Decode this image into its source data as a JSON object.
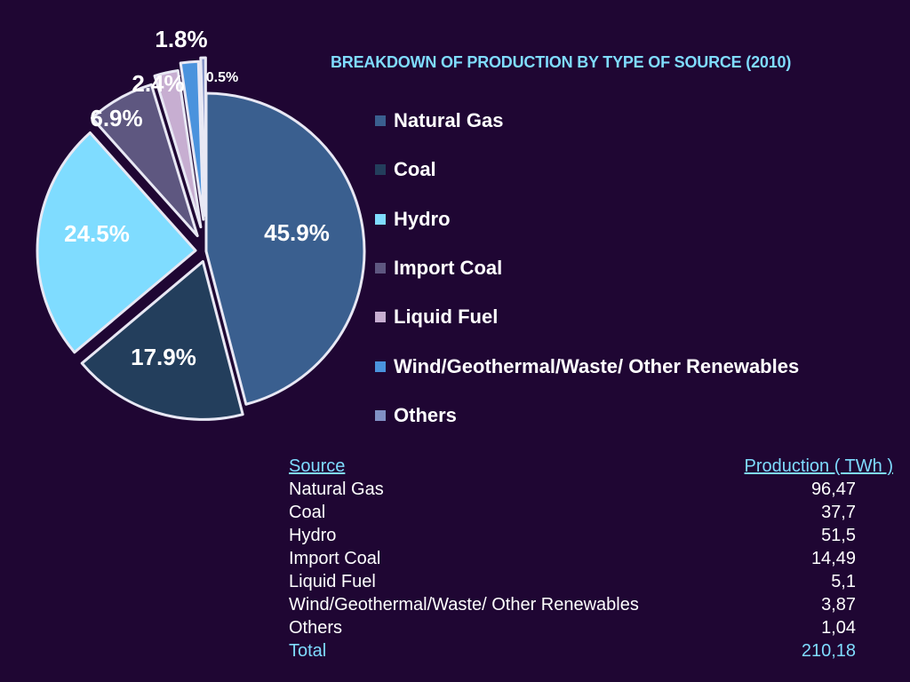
{
  "colors": {
    "background": "#1f0633",
    "title": "#7fdcff",
    "table_header": "#7fdcff",
    "total": "#7fdcff",
    "text": "#ffffff"
  },
  "chart_data": {
    "type": "pie",
    "title": "BREAKDOWN OF PRODUCTION BY TYPE OF SOURCE (2010)",
    "legend_position": "right",
    "slices": [
      {
        "label": "Natural Gas",
        "value": 45.9,
        "value_label": "45.9%",
        "color": "#3a5f8f"
      },
      {
        "label": "Coal",
        "value": 17.9,
        "value_label": "17.9%",
        "color": "#233e5c"
      },
      {
        "label": "Hydro",
        "value": 24.5,
        "value_label": "24.5%",
        "color": "#7fdcff"
      },
      {
        "label": "Import Coal",
        "value": 6.9,
        "value_label": "6.9%",
        "color": "#5e5780"
      },
      {
        "label": "Liquid Fuel",
        "value": 2.4,
        "value_label": "2.4%",
        "color": "#c7aed1"
      },
      {
        "label": "Wind/Geothermal/Waste/ Other Renewables",
        "value": 1.8,
        "value_label": "1.8%",
        "color": "#4a93dd"
      },
      {
        "label": "Others",
        "value": 0.5,
        "value_label": "0.5%",
        "color": "#8190c4"
      }
    ]
  },
  "table": {
    "header_source": "Source",
    "header_production": "Production ( TWh )",
    "rows": [
      {
        "source": "Natural Gas",
        "production": "96,47"
      },
      {
        "source": "Coal",
        "production": "37,7"
      },
      {
        "source": "Hydro",
        "production": "51,5"
      },
      {
        "source": "Import Coal",
        "production": "14,49"
      },
      {
        "source": "Liquid Fuel",
        "production": "5,1"
      },
      {
        "source": "Wind/Geothermal/Waste/ Other Renewables",
        "production": "3,87"
      },
      {
        "source": "Others",
        "production": "1,04"
      }
    ],
    "total_label": "Total",
    "total_value": "210,18"
  }
}
